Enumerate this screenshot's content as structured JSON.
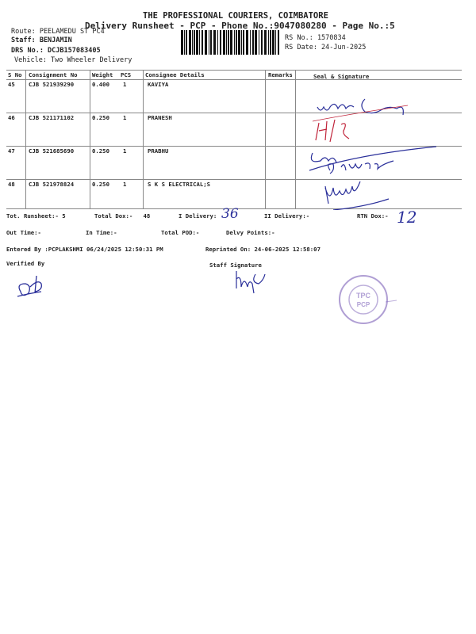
{
  "header": {
    "company": "THE PROFESSIONAL COURIERS, COIMBATORE",
    "title": "Delivery Runsheet - PCP - Phone No.:9047080280 - Page No.:5"
  },
  "info": {
    "route": "Route: PEELAMEDU ST PC4",
    "staff": "Staff: BENJAMIN",
    "drs": "DRS No.: DCJB157083405",
    "vehicle": "Vehicle: Two Wheeler Delivery",
    "rs_no": "RS No.: 1570834",
    "rs_date": "RS Date: 24-Jun-2025"
  },
  "table": {
    "columns": [
      "S No",
      "Consignment No",
      "Weight",
      "PCS",
      "Consignee Details",
      "Remarks",
      "Seal & Signature"
    ],
    "rows": [
      {
        "sno": "45",
        "consignment": "CJB 521939290",
        "weight": "0.400",
        "pcs": "1",
        "consignee": "KAVIYA"
      },
      {
        "sno": "46",
        "consignment": "CJB 521171102",
        "weight": "0.250",
        "pcs": "1",
        "consignee": "PRANESH"
      },
      {
        "sno": "47",
        "consignment": "CJB 521685690",
        "weight": "0.250",
        "pcs": "1",
        "consignee": "PRABHU"
      },
      {
        "sno": "48",
        "consignment": "CJB 521978824",
        "weight": "0.250",
        "pcs": "1",
        "consignee": "S K S ELECTRICAL;S"
      }
    ]
  },
  "summary": {
    "tot_runsheet": "Tot. Runsheet:- 5",
    "total_dox": "Total Dox:-   48",
    "i_delivery": "I Delivery:",
    "i_delivery_handwritten": "36",
    "ii_delivery": "II Delivery:-",
    "rtn_dox": "RTN Dox:-",
    "rtn_dox_handwritten": "12",
    "out_time": "Out Time:-",
    "in_time": "In Time:-",
    "total_pod": "Total POD:-",
    "delvy_points": "Delvy Points:-",
    "entered_by": "Entered By :PCPLAKSHMI 06/24/2025 12:50:31 PM",
    "reprinted_on": "Reprinted On: 24-06-2025 12:58:07",
    "verified_by": "Verified By",
    "staff_signature": "Staff Signature"
  },
  "stamp": {
    "text": "TPC PCP",
    "color": "#7b5fb8"
  },
  "ink_colors": {
    "blue": "#2a2f9a",
    "red": "#c0243a"
  }
}
